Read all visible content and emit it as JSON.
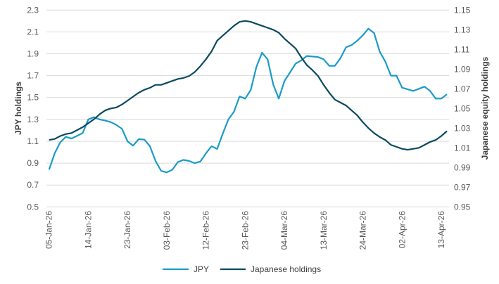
{
  "chart_data": {
    "type": "line",
    "x": [
      "05-Jan-26",
      "06-Jan-26",
      "07-Jan-26",
      "08-Jan-26",
      "09-Jan-26",
      "12-Jan-26",
      "13-Jan-26",
      "14-Jan-26",
      "15-Jan-26",
      "16-Jan-26",
      "19-Jan-26",
      "20-Jan-26",
      "21-Jan-26",
      "22-Jan-26",
      "23-Jan-26",
      "26-Jan-26",
      "27-Jan-26",
      "28-Jan-26",
      "29-Jan-26",
      "30-Jan-26",
      "02-Feb-26",
      "03-Feb-26",
      "04-Feb-26",
      "05-Feb-26",
      "06-Feb-26",
      "09-Feb-26",
      "10-Feb-26",
      "11-Feb-26",
      "12-Feb-26",
      "13-Feb-26",
      "16-Feb-26",
      "17-Feb-26",
      "18-Feb-26",
      "19-Feb-26",
      "20-Feb-26",
      "23-Feb-26",
      "24-Feb-26",
      "25-Feb-26",
      "26-Feb-26",
      "27-Feb-26",
      "02-Mar-26",
      "03-Mar-26",
      "04-Mar-26",
      "05-Mar-26",
      "06-Mar-26",
      "09-Mar-26",
      "10-Mar-26",
      "11-Mar-26",
      "12-Mar-26",
      "13-Mar-26",
      "16-Mar-26",
      "17-Mar-26",
      "18-Mar-26",
      "19-Mar-26",
      "20-Mar-26",
      "23-Mar-26",
      "24-Mar-26",
      "25-Mar-26",
      "26-Mar-26",
      "27-Mar-26",
      "30-Mar-26",
      "31-Mar-26",
      "01-Apr-26",
      "02-Apr-26",
      "03-Apr-26",
      "06-Apr-26",
      "07-Apr-26",
      "08-Apr-26",
      "09-Apr-26",
      "10-Apr-26",
      "13-Apr-26",
      "14-Apr-26"
    ],
    "x_tick_labels": [
      "05-Jan-26",
      "14-Jan-26",
      "23-Jan-26",
      "03-Feb-26",
      "12-Feb-26",
      "23-Feb-26",
      "04-Mar-26",
      "13-Mar-26",
      "24-Mar-26",
      "02-Apr-26",
      "13-Apr-26"
    ],
    "series": [
      {
        "name": "JPY",
        "axis": "left",
        "color": "#1b9bc9",
        "values": [
          0.84,
          0.99,
          1.09,
          1.14,
          1.125,
          1.15,
          1.175,
          1.3,
          1.32,
          1.3,
          1.29,
          1.275,
          1.25,
          1.215,
          1.1,
          1.06,
          1.12,
          1.115,
          1.055,
          0.92,
          0.83,
          0.815,
          0.84,
          0.91,
          0.93,
          0.92,
          0.9,
          0.915,
          0.99,
          1.055,
          1.03,
          1.17,
          1.3,
          1.37,
          1.51,
          1.49,
          1.57,
          1.78,
          1.91,
          1.85,
          1.62,
          1.49,
          1.65,
          1.73,
          1.81,
          1.84,
          1.88,
          1.875,
          1.87,
          1.85,
          1.79,
          1.79,
          1.86,
          1.96,
          1.98,
          2.02,
          2.07,
          2.13,
          2.09,
          1.92,
          1.83,
          1.7,
          1.7,
          1.59,
          1.575,
          1.56,
          1.58,
          1.6,
          1.56,
          1.49,
          1.49,
          1.53
        ]
      },
      {
        "name": "Japanese holdings",
        "axis": "right",
        "color": "#0b4a5f",
        "values": [
          1.018,
          1.019,
          1.022,
          1.024,
          1.025,
          1.028,
          1.031,
          1.035,
          1.039,
          1.044,
          1.048,
          1.05,
          1.051,
          1.054,
          1.058,
          1.062,
          1.066,
          1.069,
          1.071,
          1.074,
          1.074,
          1.076,
          1.078,
          1.08,
          1.081,
          1.083,
          1.087,
          1.093,
          1.1,
          1.108,
          1.119,
          1.124,
          1.129,
          1.134,
          1.138,
          1.139,
          1.138,
          1.136,
          1.134,
          1.132,
          1.13,
          1.127,
          1.121,
          1.116,
          1.111,
          1.102,
          1.094,
          1.089,
          1.083,
          1.074,
          1.066,
          1.059,
          1.056,
          1.053,
          1.048,
          1.043,
          1.036,
          1.03,
          1.025,
          1.021,
          1.018,
          1.013,
          1.011,
          1.009,
          1.008,
          1.009,
          1.01,
          1.013,
          1.016,
          1.018,
          1.022,
          1.027
        ]
      }
    ],
    "ylabel": "JPY holdings",
    "ylabel_right": "Japanese equity holdings",
    "ylim": [
      0.5,
      2.3
    ],
    "yticks": [
      "2.3",
      "2.1",
      "1.9",
      "1.7",
      "1.5",
      "1.3",
      "1.1",
      "0.9",
      "0.7",
      "0.5"
    ],
    "ylim_right": [
      0.95,
      1.15
    ],
    "yticks_right": [
      "1.15",
      "1.13",
      "1.11",
      "1.09",
      "1.07",
      "1.05",
      "1.03",
      "1.01",
      "0.99",
      "0.97",
      "0.95"
    ],
    "grid": "horizontal",
    "gridline_color": "#d9d9d9",
    "legend_position": "bottom",
    "legend": [
      "JPY",
      "Japanese holdings"
    ]
  }
}
